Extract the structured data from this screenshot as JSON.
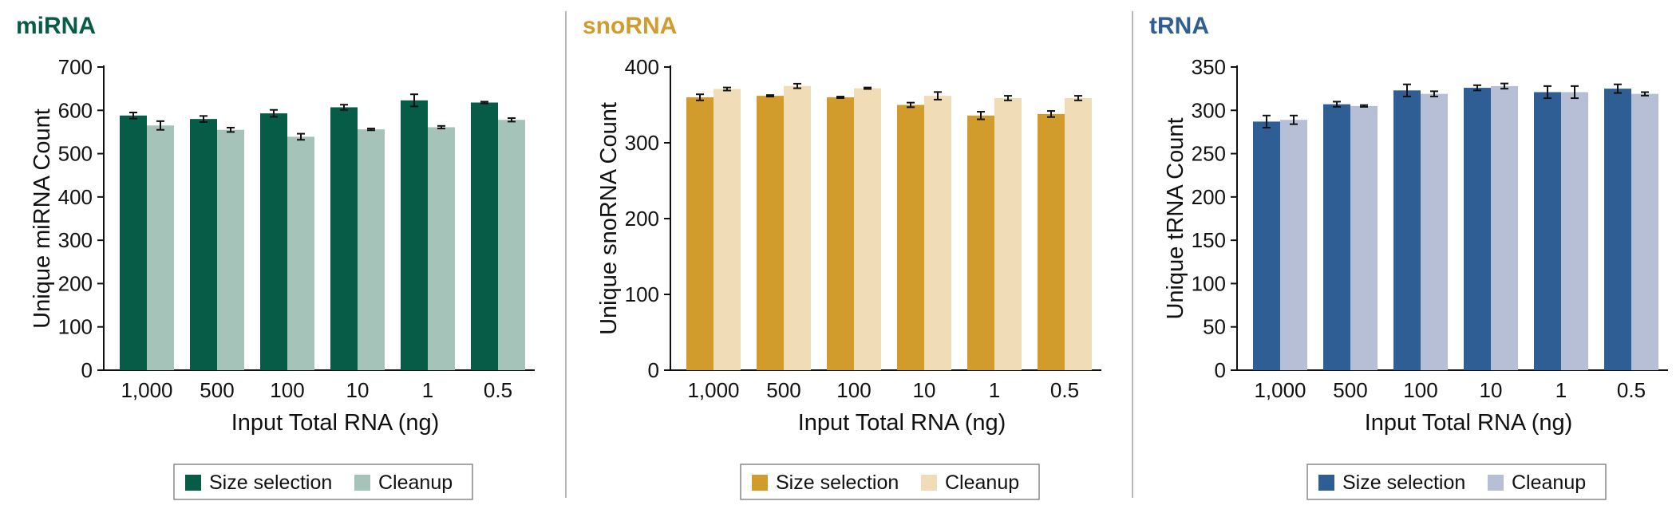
{
  "chart_data": [
    {
      "type": "bar",
      "title": "miRNA",
      "title_color": "#075c47",
      "xlabel": "Input Total RNA (ng)",
      "ylabel": "Unique miRNA Count",
      "categories": [
        "1,000",
        "500",
        "100",
        "10",
        "1",
        "0.5"
      ],
      "ylim": [
        0,
        700
      ],
      "yticks": [
        0,
        100,
        200,
        300,
        400,
        500,
        600,
        700
      ],
      "legend_placement": "bottom-center",
      "series": [
        {
          "name": "Size selection",
          "color": "#075c47",
          "values": [
            588,
            580,
            593,
            607,
            623,
            618
          ],
          "errors": [
            7,
            7,
            8,
            6,
            14,
            2
          ]
        },
        {
          "name": "Cleanup",
          "color": "#a5c3b8",
          "values": [
            565,
            555,
            539,
            556,
            561,
            578
          ],
          "errors": [
            10,
            5,
            7,
            2,
            3,
            4
          ]
        }
      ]
    },
    {
      "type": "bar",
      "title": "snoRNA",
      "title_color": "#d19c2b",
      "xlabel": "Input Total RNA (ng)",
      "ylabel": "Unique snoRNA Count",
      "categories": [
        "1,000",
        "500",
        "100",
        "10",
        "1",
        "0.5"
      ],
      "ylim": [
        0,
        400
      ],
      "yticks": [
        0,
        100,
        200,
        300,
        400
      ],
      "legend_placement": "bottom-center",
      "series": [
        {
          "name": "Size selection",
          "color": "#d19c2b",
          "values": [
            360,
            362,
            360,
            350,
            336,
            338
          ],
          "errors": [
            4,
            1,
            1,
            3,
            5,
            4
          ]
        },
        {
          "name": "Cleanup",
          "color": "#f0dcb6",
          "values": [
            371,
            375,
            372,
            362,
            359,
            359
          ],
          "errors": [
            2,
            3,
            1,
            5,
            3,
            3
          ]
        }
      ]
    },
    {
      "type": "bar",
      "title": "tRNA",
      "title_color": "#2f5e94",
      "xlabel": "Input Total RNA (ng)",
      "ylabel": "Unique tRNA Count",
      "categories": [
        "1,000",
        "500",
        "100",
        "10",
        "1",
        "0.5"
      ],
      "ylim": [
        0,
        350
      ],
      "yticks": [
        0,
        50,
        100,
        150,
        200,
        250,
        300,
        350
      ],
      "legend_placement": "bottom-center",
      "series": [
        {
          "name": "Size selection",
          "color": "#2f5e94",
          "values": [
            287,
            307,
            323,
            326,
            321,
            325
          ],
          "errors": [
            7,
            3,
            7,
            3,
            7,
            5
          ]
        },
        {
          "name": "Cleanup",
          "color": "#b7bfd6",
          "values": [
            289,
            305,
            319,
            328,
            321,
            319
          ],
          "errors": [
            5,
            1,
            3,
            3,
            7,
            2
          ]
        }
      ]
    }
  ]
}
